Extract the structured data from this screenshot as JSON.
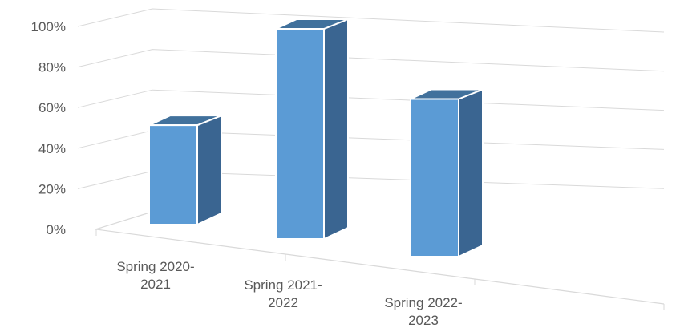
{
  "chart_data": {
    "type": "bar",
    "title": "",
    "xlabel": "",
    "ylabel": "",
    "categories": [
      [
        "Spring 2020-",
        "2021"
      ],
      [
        "Spring 2021-",
        "2022"
      ],
      [
        "Spring 2022-",
        "2023"
      ]
    ],
    "values": [
      48,
      100,
      75
    ],
    "ylim": [
      0,
      100
    ],
    "yticks": [
      "0%",
      "20%",
      "40%",
      "60%",
      "80%",
      "100%"
    ],
    "grid": true,
    "legend": "none",
    "colors": {
      "bar_front": "#5b9bd5",
      "bar_side": "#3a6591",
      "bar_top": "#41719c",
      "grid": "#d9d9d9",
      "text": "#595959"
    }
  }
}
